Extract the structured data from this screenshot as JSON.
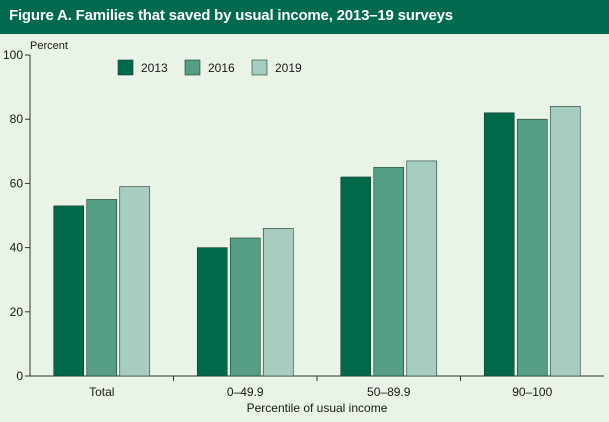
{
  "chart_data": {
    "type": "bar",
    "title": "Figure A. Families that saved by usual income, 2013–19 surveys",
    "ylabel": "Percent",
    "xlabel": "Percentile of usual income",
    "categories": [
      "Total",
      "0–49.9",
      "50–89.9",
      "90–100"
    ],
    "series": [
      {
        "name": "2013",
        "color": "#00694a",
        "values": [
          53,
          40,
          62,
          82
        ]
      },
      {
        "name": "2016",
        "color": "#559e84",
        "values": [
          55,
          43,
          65,
          80
        ]
      },
      {
        "name": "2019",
        "color": "#a6cdbf",
        "values": [
          59,
          46,
          67,
          84
        ]
      }
    ],
    "ylim": [
      0,
      100
    ],
    "yticks": [
      0,
      20,
      40,
      60,
      80,
      100
    ],
    "grid": false,
    "legend_position": "top-left"
  }
}
